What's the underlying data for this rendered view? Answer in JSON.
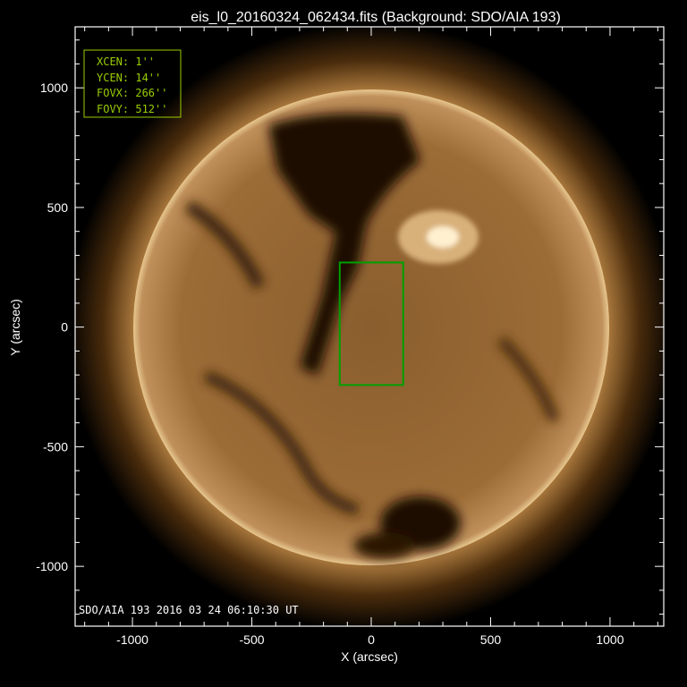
{
  "title": "eis_l0_20160324_062434.fits  (Background: SDO/AIA 193)",
  "x_axis": {
    "label": "X (arcsec)",
    "range": [
      -1240,
      1225
    ],
    "ticks": [
      -1000,
      -500,
      0,
      500,
      1000
    ]
  },
  "y_axis": {
    "label": "Y (arcsec)",
    "range": [
      -1250,
      1255
    ],
    "ticks": [
      -1000,
      -500,
      0,
      500,
      1000
    ]
  },
  "info_box": {
    "lines": [
      "XCEN:  1''",
      "YCEN:  14''",
      "FOVX:  266''",
      "FOVY:  512''"
    ],
    "color": "#9acd00"
  },
  "fov_box": {
    "xcen": 1,
    "ycen": 14,
    "fovx": 266,
    "fovy": 512,
    "color": "#00a000"
  },
  "stamp": "SDO/AIA  193    2016  03  24 06:10:30 UT",
  "colors": {
    "sun_core": "#c79a5a",
    "sun_edge": "#6b4418",
    "corona": "#3a2208"
  }
}
